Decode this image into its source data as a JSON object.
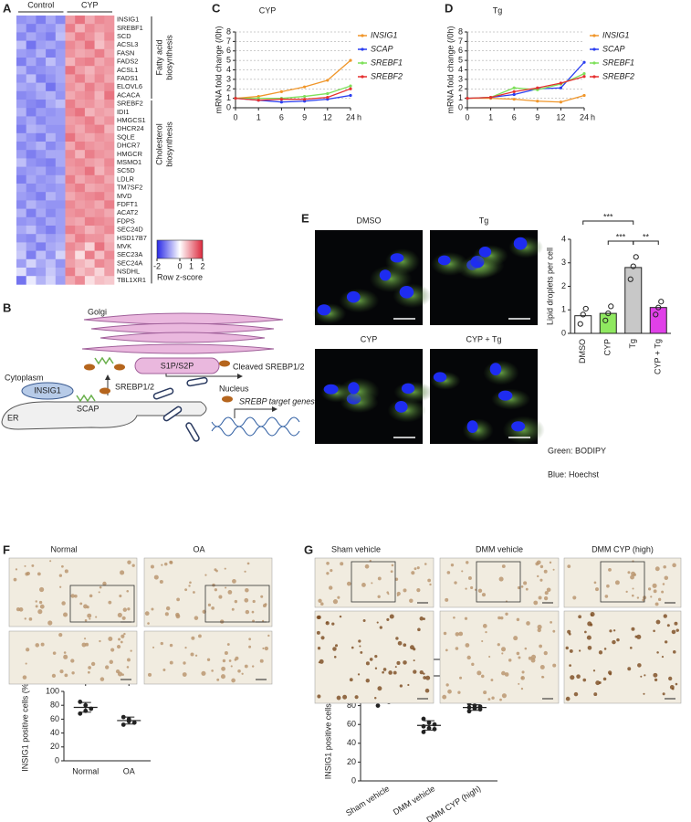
{
  "chart_data": [
    {
      "type": "heatmap",
      "panel": "A",
      "groups": [
        "Control",
        "CYP"
      ],
      "genes": [
        "INSIG1",
        "SREBF1",
        "SCD",
        "ACSL3",
        "FASN",
        "FADS2",
        "ACSL1",
        "FADS1",
        "ELOVL6",
        "ACACA",
        "SREBF2",
        "IDI1",
        "HMGCS1",
        "DHCR24",
        "SQLE",
        "DHCR7",
        "HMGCR",
        "MSMO1",
        "SC5D",
        "LDLR",
        "TM7SF2",
        "MVD",
        "FDFT1",
        "ACAT2",
        "FDPS",
        "SEC24D",
        "HSD17B7",
        "MVK",
        "SEC23A",
        "SEC24A",
        "NSDHL",
        "TBL1XR1"
      ],
      "values": [
        [
          -1.0,
          -0.9,
          -1.2,
          -0.8,
          -1.1,
          0.9,
          1.3,
          0.8,
          1.1,
          1.0
        ],
        [
          -0.8,
          -1.2,
          -0.9,
          -1.0,
          -0.7,
          1.2,
          0.7,
          1.1,
          0.9,
          1.0
        ],
        [
          -1.1,
          -0.8,
          -1.0,
          -1.2,
          -0.6,
          0.8,
          1.2,
          1.0,
          0.7,
          1.1
        ],
        [
          -0.6,
          -1.3,
          -0.9,
          -0.8,
          -1.0,
          1.1,
          0.9,
          1.3,
          0.6,
          0.9
        ],
        [
          -0.9,
          -1.0,
          -0.7,
          -1.2,
          -0.9,
          1.0,
          0.8,
          0.9,
          1.2,
          0.8
        ],
        [
          -1.2,
          -0.8,
          -1.1,
          -0.6,
          -0.9,
          0.7,
          1.1,
          1.2,
          0.8,
          1.0
        ],
        [
          -0.7,
          -1.1,
          -1.0,
          -0.9,
          -0.8,
          1.3,
          0.9,
          0.7,
          1.0,
          0.9
        ],
        [
          -1.0,
          -0.6,
          -1.2,
          -1.0,
          -0.8,
          0.9,
          1.2,
          0.8,
          1.1,
          0.8
        ],
        [
          -0.8,
          -0.9,
          -0.7,
          -1.3,
          -0.9,
          1.0,
          0.8,
          1.2,
          0.9,
          1.1
        ],
        [
          -1.1,
          -1.0,
          -0.8,
          -0.7,
          -1.0,
          0.8,
          1.0,
          1.1,
          0.7,
          1.3
        ],
        [
          -0.9,
          -1.1,
          -1.2,
          -0.8,
          -0.6,
          1.2,
          0.9,
          1.0,
          0.8,
          1.0
        ],
        [
          -0.7,
          -1.2,
          -0.9,
          -1.0,
          -0.9,
          1.1,
          1.3,
          0.7,
          0.9,
          0.8
        ],
        [
          -1.0,
          -0.8,
          -1.1,
          -0.9,
          -0.9,
          0.9,
          1.0,
          1.2,
          0.8,
          1.0
        ],
        [
          -1.2,
          -0.7,
          -0.8,
          -1.0,
          -1.0,
          1.0,
          0.8,
          1.1,
          1.2,
          0.7
        ],
        [
          -0.8,
          -1.0,
          -1.2,
          -0.7,
          -1.0,
          1.3,
          0.9,
          0.8,
          1.0,
          0.9
        ],
        [
          -1.1,
          -0.9,
          -0.7,
          -1.1,
          -0.9,
          0.8,
          1.2,
          1.0,
          0.9,
          1.0
        ],
        [
          -0.9,
          -1.2,
          -1.0,
          -0.8,
          -0.8,
          1.1,
          0.7,
          1.2,
          1.0,
          0.9
        ],
        [
          -0.6,
          -1.0,
          -1.1,
          -1.2,
          -0.8,
          1.0,
          1.1,
          0.9,
          0.8,
          1.1
        ],
        [
          -1.0,
          -0.9,
          -0.8,
          -1.1,
          -1.0,
          0.9,
          1.0,
          1.3,
          0.7,
          1.0
        ],
        [
          -1.2,
          -0.8,
          -1.0,
          -0.9,
          -0.7,
          1.2,
          0.8,
          1.0,
          1.1,
          0.8
        ],
        [
          -0.8,
          -1.1,
          -0.9,
          -1.0,
          -0.9,
          1.0,
          1.2,
          0.8,
          0.9,
          1.0
        ],
        [
          -0.9,
          -1.0,
          -1.2,
          -0.7,
          -0.9,
          0.8,
          1.0,
          1.1,
          1.2,
          0.9
        ],
        [
          -1.1,
          -0.7,
          -0.9,
          -1.0,
          -1.0,
          1.1,
          0.9,
          1.0,
          0.8,
          1.2
        ],
        [
          -0.7,
          -1.2,
          -0.8,
          -1.1,
          -0.9,
          1.0,
          1.1,
          0.9,
          1.0,
          0.8
        ],
        [
          -1.0,
          -0.9,
          -1.1,
          -0.8,
          -0.9,
          0.9,
          0.8,
          1.2,
          1.1,
          1.0
        ],
        [
          -0.8,
          -0.6,
          -1.0,
          -1.2,
          -0.9,
          1.2,
          1.0,
          0.7,
          0.9,
          1.1
        ],
        [
          -1.0,
          -1.1,
          -0.7,
          -0.9,
          -0.8,
          0.8,
          1.2,
          1.0,
          1.0,
          0.7
        ],
        [
          -0.6,
          -0.9,
          -1.2,
          -0.8,
          -0.7,
          1.1,
          0.9,
          0.4,
          1.3,
          0.8
        ],
        [
          -0.5,
          -1.2,
          -0.6,
          -1.0,
          -0.4,
          1.0,
          0.3,
          1.2,
          0.6,
          1.1
        ],
        [
          -0.9,
          -0.4,
          -0.8,
          -0.6,
          -1.0,
          0.9,
          0.7,
          0.5,
          1.1,
          0.9
        ],
        [
          -0.3,
          -1.0,
          -0.9,
          -0.5,
          -0.8,
          1.2,
          0.6,
          0.8,
          0.4,
          0.9
        ],
        [
          -1.3,
          -0.2,
          -0.7,
          -0.4,
          -0.9,
          0.8,
          1.1,
          0.3,
          0.6,
          0.5
        ]
      ],
      "gene_sets": [
        {
          "lines": [
            "Fatty acid",
            "biosynthesis"
          ],
          "from": "INSIG1",
          "to": "ACACA"
        },
        {
          "lines": [
            "Cholesterol",
            "biosynthesis"
          ],
          "from": "SREBF2",
          "to": "TBL1XR1"
        }
      ],
      "colorbar": {
        "range": [
          -2,
          2
        ],
        "ticks": [
          -2,
          0,
          1,
          2
        ],
        "label": "Row z-score",
        "low_color": "#2828e6",
        "high_color": "#dc283c"
      }
    },
    {
      "type": "line",
      "panel": "C",
      "title": "CYP",
      "ylabel": "mRNA fold change (/0h)",
      "xlabel": "h",
      "categories": [
        "0",
        "1",
        "6",
        "9",
        "12",
        "24"
      ],
      "ylim": [
        0,
        8
      ],
      "yticks": [
        0,
        1,
        2,
        3,
        4,
        5,
        6,
        7,
        8
      ],
      "grid": true,
      "series": [
        {
          "name": "INSIG1",
          "color": "#f0962a",
          "values": [
            1,
            1.2,
            1.7,
            2.2,
            2.9,
            5.0
          ]
        },
        {
          "name": "SCAP",
          "color": "#2a3ef0",
          "values": [
            1,
            0.8,
            0.6,
            0.7,
            0.9,
            1.3
          ]
        },
        {
          "name": "SREBF1",
          "color": "#7ee05a",
          "values": [
            1,
            1.0,
            1.0,
            1.2,
            1.5,
            2.3
          ]
        },
        {
          "name": "SREBF2",
          "color": "#e53030",
          "values": [
            1,
            0.8,
            0.9,
            0.9,
            1.1,
            2.0
          ]
        }
      ]
    },
    {
      "type": "line",
      "panel": "D",
      "title": "Tg",
      "ylabel": "mRNA fold change (/0h)",
      "xlabel": "h",
      "categories": [
        "0",
        "1",
        "6",
        "9",
        "12",
        "24"
      ],
      "ylim": [
        0,
        8
      ],
      "yticks": [
        0,
        1,
        2,
        3,
        4,
        5,
        6,
        7,
        8
      ],
      "grid": true,
      "series": [
        {
          "name": "INSIG1",
          "color": "#f0962a",
          "values": [
            1,
            1.0,
            0.9,
            0.7,
            0.6,
            1.3
          ]
        },
        {
          "name": "SCAP",
          "color": "#2a3ef0",
          "values": [
            1,
            1.1,
            1.4,
            2.0,
            2.1,
            4.8
          ]
        },
        {
          "name": "SREBF1",
          "color": "#7ee05a",
          "values": [
            1,
            1.1,
            2.1,
            1.9,
            2.5,
            3.6
          ]
        },
        {
          "name": "SREBF2",
          "color": "#e53030",
          "values": [
            1,
            1.1,
            1.7,
            2.1,
            2.6,
            3.3
          ]
        }
      ]
    },
    {
      "type": "bar",
      "ylabel": "Lipid droplets per cell",
      "categories": [
        "DMSO",
        "CYP",
        "Tg",
        "CYP + Tg"
      ],
      "values": [
        0.75,
        0.85,
        2.8,
        1.1
      ],
      "colors": [
        "#ffffff",
        "#8fe860",
        "#c8c8c8",
        "#e040e8"
      ],
      "points": [
        [
          0.4,
          0.8,
          1.05
        ],
        [
          0.55,
          0.85,
          1.15
        ],
        [
          2.3,
          2.85,
          3.25
        ],
        [
          0.8,
          1.1,
          1.35
        ]
      ],
      "ylim": [
        0,
        4
      ],
      "yticks": [
        0,
        1,
        2,
        3,
        4
      ],
      "significance": [
        {
          "from": "DMSO",
          "to": "Tg",
          "label": "***"
        },
        {
          "from": "CYP",
          "to": "Tg",
          "label": "***"
        },
        {
          "from": "Tg",
          "to": "CYP + Tg",
          "label": "**"
        }
      ]
    },
    {
      "type": "dot",
      "ylabel": "INSIG1 positive cells (%)",
      "categories": [
        "Normal",
        "OA"
      ],
      "points": [
        [
          85,
          80,
          75,
          68,
          72
        ],
        [
          63,
          60,
          55,
          52,
          57
        ]
      ],
      "mean": [
        77,
        58
      ],
      "sd": [
        7,
        5
      ],
      "ylim": [
        0,
        100
      ],
      "yticks": [
        0,
        20,
        40,
        60,
        80,
        100
      ],
      "significance": [
        {
          "from": "Normal",
          "to": "OA",
          "label": "*"
        }
      ]
    },
    {
      "type": "dot",
      "ylabel": "INSIG1 positive cells (%)",
      "categories": [
        "Sham vehicle",
        "DMM vehicle",
        "DMM CYP (high)"
      ],
      "points": [
        [
          95,
          92,
          90,
          88,
          86,
          84,
          80
        ],
        [
          66,
          62,
          60,
          58,
          56,
          55,
          52
        ],
        [
          82,
          80,
          79,
          78,
          77,
          76,
          74
        ]
      ],
      "mean": [
        88,
        59,
        78
      ],
      "sd": [
        5,
        5,
        3
      ],
      "ylim": [
        0,
        100
      ],
      "yticks": [
        0,
        20,
        40,
        60,
        80,
        100
      ],
      "significance": [
        {
          "from": "Sham vehicle",
          "to": "DMM CYP (high)",
          "label": "**"
        },
        {
          "from": "Sham vehicle",
          "to": "DMM vehicle",
          "label": "****"
        },
        {
          "from": "DMM vehicle",
          "to": "DMM CYP (high)",
          "label": "****"
        }
      ]
    }
  ],
  "diagram": {
    "panel": "B",
    "golgi": "Golgi",
    "protease": "S1P/S2P",
    "cleaved": "Cleaved SREBP1/2",
    "cytoplasm": "Cytoplasm",
    "insig": "INSIG1",
    "srebp": "SREBP1/2",
    "scap": "SCAP",
    "er": "ER",
    "nucleus": "Nucleus",
    "targets": "SREBP target genes"
  },
  "micrographs": {
    "E": {
      "panel": "E",
      "titles": [
        "DMSO",
        "Tg",
        "CYP",
        "CYP + Tg"
      ],
      "legend": [
        "Green: BODIPY",
        "Blue: Hoechst"
      ]
    },
    "F": {
      "panel": "F",
      "titles": [
        "Normal",
        "OA"
      ]
    },
    "G": {
      "panel": "G",
      "titles": [
        "Sham vehicle",
        "DMM vehicle",
        "DMM CYP (high)"
      ]
    }
  }
}
